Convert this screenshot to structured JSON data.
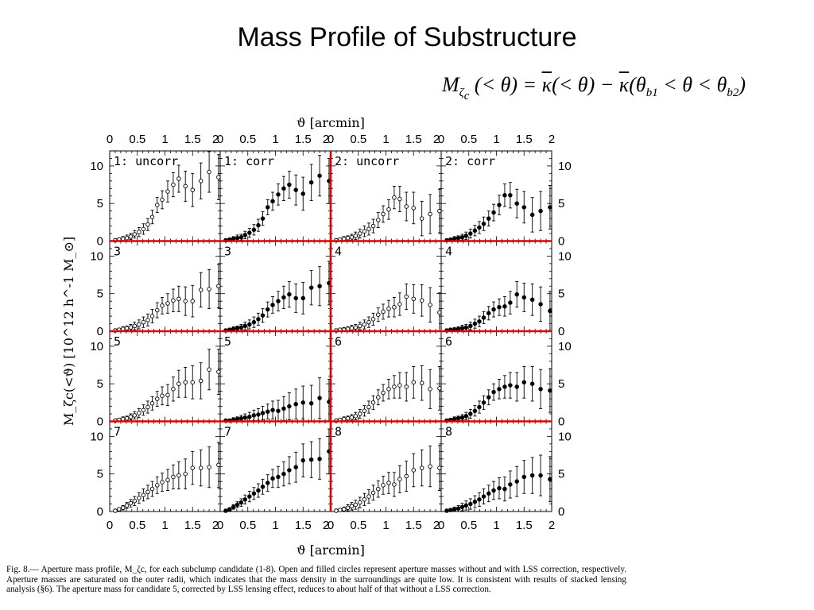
{
  "slide": {
    "title": "Mass Profile of Substructure",
    "equation": {
      "lhs": "M",
      "lhs_sub": "ζ",
      "lhs_sub_sub": "c",
      "part1": " (< θ) = ",
      "kappa": "κ",
      "part2": "(< θ) − ",
      "part3": "(θ",
      "sub1": "b1",
      "part4": " < θ < θ",
      "sub2": "b2",
      "part5": ")"
    },
    "caption": "Fig. 8.— Aperture mass profile, M_ζc, for each subclump candidate (1-8). Open and filled circles represent aperture masses without and with LSS correction, respectively. Aperture masses are saturated on the outer radii, which indicates that the mass density in the surroundings are quite low. It is consistent with results of stacked lensing analysis (§6). The aperture mass for candidate 5, corrected by LSS lensing effect, reduces to about half of that without a LSS correction."
  },
  "chart_data": {
    "type": "scatter",
    "xlabel": "ϑ [arcmin]",
    "ylabel": "M_ζc(<ϑ) [10^12 h^-1 M_⊙]",
    "xlim": [
      0,
      2
    ],
    "ylim": [
      0,
      12
    ],
    "x_ticks": [
      0,
      0.5,
      1,
      1.5,
      2
    ],
    "x_tick_labels": [
      "0",
      "0.5",
      "1",
      "1.5",
      "2"
    ],
    "y_ticks": [
      0,
      5,
      10
    ],
    "y_tick_labels": [
      "0",
      "5",
      "10"
    ],
    "grid": false,
    "rows": 4,
    "cols": 4,
    "x": [
      0.1,
      0.17,
      0.24,
      0.31,
      0.38,
      0.45,
      0.53,
      0.61,
      0.69,
      0.77,
      0.86,
      0.95,
      1.05,
      1.15,
      1.25,
      1.37,
      1.5,
      1.65,
      1.8,
      1.97
    ],
    "panels": [
      {
        "label": "1: uncorr",
        "marker": "open",
        "y": [
          0.1,
          0.2,
          0.3,
          0.4,
          0.6,
          0.9,
          1.2,
          1.6,
          2.2,
          3.2,
          4.8,
          5.5,
          6.6,
          7.5,
          8.3,
          7.3,
          6.8,
          8.0,
          9.2,
          8.5
        ],
        "err": [
          0.2,
          0.2,
          0.3,
          0.4,
          0.4,
          0.5,
          0.6,
          0.7,
          0.8,
          0.9,
          1.0,
          1.2,
          1.4,
          1.6,
          1.8,
          2.0,
          2.2,
          2.4,
          2.7,
          3.0
        ]
      },
      {
        "label": "1: corr",
        "marker": "filled",
        "y": [
          0.1,
          0.2,
          0.3,
          0.4,
          0.5,
          0.8,
          1.1,
          1.5,
          2.1,
          3.0,
          4.5,
          5.3,
          6.2,
          7.0,
          7.5,
          6.8,
          6.3,
          7.8,
          8.7,
          8.0
        ],
        "err": [
          0.2,
          0.2,
          0.3,
          0.4,
          0.4,
          0.5,
          0.6,
          0.7,
          0.8,
          0.9,
          1.0,
          1.2,
          1.4,
          1.6,
          1.8,
          2.0,
          2.2,
          2.4,
          2.7,
          3.0
        ]
      },
      {
        "label": "2: uncorr",
        "marker": "open",
        "y": [
          0.1,
          0.2,
          0.3,
          0.4,
          0.5,
          0.7,
          1.0,
          1.3,
          1.6,
          2.0,
          2.8,
          3.6,
          4.2,
          5.8,
          5.6,
          4.6,
          4.4,
          3.0,
          3.6,
          4.0
        ],
        "err": [
          0.2,
          0.2,
          0.3,
          0.3,
          0.4,
          0.5,
          0.6,
          0.7,
          0.8,
          0.9,
          1.0,
          1.1,
          1.3,
          1.5,
          1.7,
          1.9,
          2.1,
          2.3,
          2.6,
          2.9
        ]
      },
      {
        "label": "2: corr",
        "marker": "filled",
        "y": [
          0.1,
          0.2,
          0.3,
          0.4,
          0.5,
          0.7,
          1.0,
          1.4,
          1.8,
          2.3,
          3.0,
          3.8,
          4.8,
          6.1,
          6.1,
          5.0,
          4.5,
          3.5,
          4.0,
          4.5
        ],
        "err": [
          0.2,
          0.2,
          0.3,
          0.3,
          0.4,
          0.5,
          0.6,
          0.7,
          0.8,
          0.9,
          1.0,
          1.1,
          1.3,
          1.5,
          1.7,
          1.9,
          2.1,
          2.3,
          2.6,
          2.9
        ]
      },
      {
        "label": "3",
        "marker": "open",
        "y": [
          0.1,
          0.2,
          0.3,
          0.4,
          0.5,
          0.7,
          0.9,
          1.2,
          1.5,
          2.0,
          2.8,
          3.4,
          3.7,
          4.1,
          4.3,
          4.0,
          4.0,
          5.5,
          5.6,
          6.0
        ],
        "err": [
          0.2,
          0.2,
          0.3,
          0.3,
          0.4,
          0.5,
          0.6,
          0.7,
          0.8,
          0.9,
          1.0,
          1.1,
          1.3,
          1.5,
          1.7,
          1.9,
          2.1,
          2.3,
          2.6,
          2.9
        ]
      },
      {
        "label": "3",
        "marker": "filled",
        "y": [
          0.1,
          0.2,
          0.3,
          0.4,
          0.5,
          0.7,
          0.9,
          1.2,
          1.6,
          2.1,
          2.9,
          3.5,
          4.0,
          4.5,
          4.9,
          4.4,
          4.4,
          5.8,
          6.0,
          6.4
        ],
        "err": [
          0.2,
          0.2,
          0.3,
          0.3,
          0.4,
          0.5,
          0.6,
          0.7,
          0.8,
          0.9,
          1.0,
          1.1,
          1.3,
          1.5,
          1.7,
          1.9,
          2.1,
          2.3,
          2.6,
          2.9
        ]
      },
      {
        "label": "4",
        "marker": "open",
        "y": [
          0.1,
          0.2,
          0.2,
          0.3,
          0.4,
          0.5,
          0.7,
          0.9,
          1.2,
          1.6,
          2.2,
          2.6,
          3.0,
          3.2,
          3.6,
          4.6,
          4.3,
          4.1,
          3.5,
          2.5
        ],
        "err": [
          0.2,
          0.2,
          0.3,
          0.3,
          0.4,
          0.4,
          0.5,
          0.6,
          0.7,
          0.8,
          0.9,
          1.0,
          1.1,
          1.3,
          1.5,
          1.7,
          1.9,
          2.1,
          2.3,
          2.6
        ]
      },
      {
        "label": "4",
        "marker": "filled",
        "y": [
          0.1,
          0.2,
          0.2,
          0.3,
          0.4,
          0.5,
          0.7,
          1.0,
          1.3,
          1.8,
          2.4,
          2.9,
          3.2,
          3.3,
          3.8,
          4.9,
          4.5,
          4.2,
          3.6,
          2.7
        ],
        "err": [
          0.2,
          0.2,
          0.3,
          0.3,
          0.4,
          0.4,
          0.5,
          0.6,
          0.7,
          0.8,
          0.9,
          1.0,
          1.1,
          1.3,
          1.5,
          1.7,
          1.9,
          2.1,
          2.3,
          2.6
        ]
      },
      {
        "label": "5",
        "marker": "open",
        "y": [
          0.1,
          0.2,
          0.3,
          0.4,
          0.6,
          0.8,
          1.1,
          1.5,
          1.9,
          2.4,
          3.0,
          3.4,
          3.5,
          4.3,
          5.0,
          5.2,
          5.2,
          5.4,
          6.9,
          6.6
        ],
        "err": [
          0.2,
          0.2,
          0.3,
          0.3,
          0.4,
          0.5,
          0.6,
          0.7,
          0.8,
          0.9,
          1.0,
          1.2,
          1.4,
          1.6,
          1.8,
          2.0,
          2.2,
          2.4,
          2.7,
          3.0
        ]
      },
      {
        "label": "5",
        "marker": "filled",
        "y": [
          0.1,
          0.1,
          0.2,
          0.3,
          0.4,
          0.5,
          0.6,
          0.8,
          0.9,
          1.1,
          1.3,
          1.5,
          1.4,
          1.7,
          2.0,
          2.3,
          2.5,
          2.4,
          3.1,
          2.6
        ],
        "err": [
          0.2,
          0.2,
          0.3,
          0.3,
          0.4,
          0.5,
          0.6,
          0.7,
          0.8,
          0.9,
          1.0,
          1.2,
          1.4,
          1.6,
          1.8,
          2.0,
          2.2,
          2.4,
          2.7,
          3.0
        ]
      },
      {
        "label": "6",
        "marker": "open",
        "y": [
          0.1,
          0.2,
          0.3,
          0.4,
          0.5,
          0.7,
          1.0,
          1.4,
          1.9,
          2.5,
          3.2,
          3.8,
          4.3,
          4.6,
          4.8,
          4.6,
          5.2,
          5.1,
          4.3,
          4.4
        ],
        "err": [
          0.2,
          0.2,
          0.3,
          0.3,
          0.4,
          0.5,
          0.6,
          0.7,
          0.8,
          0.9,
          1.0,
          1.1,
          1.3,
          1.5,
          1.7,
          1.9,
          2.1,
          2.3,
          2.6,
          2.9
        ]
      },
      {
        "label": "6",
        "marker": "filled",
        "y": [
          0.1,
          0.2,
          0.3,
          0.4,
          0.5,
          0.7,
          1.0,
          1.4,
          1.9,
          2.5,
          3.2,
          3.9,
          4.3,
          4.6,
          4.8,
          4.6,
          5.2,
          5.0,
          4.3,
          4.1
        ],
        "err": [
          0.2,
          0.2,
          0.3,
          0.3,
          0.4,
          0.5,
          0.6,
          0.7,
          0.8,
          0.9,
          1.0,
          1.1,
          1.3,
          1.5,
          1.7,
          1.9,
          2.1,
          2.3,
          2.6,
          2.9
        ]
      },
      {
        "label": "7",
        "marker": "open",
        "y": [
          0.1,
          0.3,
          0.5,
          0.8,
          1.1,
          1.4,
          1.8,
          2.2,
          2.6,
          3.0,
          3.5,
          3.9,
          4.2,
          4.6,
          4.8,
          5.0,
          5.8,
          5.8,
          5.9,
          6.2
        ],
        "err": [
          0.2,
          0.2,
          0.3,
          0.4,
          0.5,
          0.6,
          0.7,
          0.8,
          0.9,
          1.0,
          1.1,
          1.2,
          1.4,
          1.6,
          1.8,
          2.0,
          2.2,
          2.4,
          2.7,
          3.0
        ]
      },
      {
        "label": "7",
        "marker": "filled",
        "y": [
          0.1,
          0.3,
          0.6,
          0.9,
          1.2,
          1.6,
          2.0,
          2.4,
          2.8,
          3.3,
          3.8,
          4.4,
          4.6,
          5.0,
          5.5,
          5.9,
          6.8,
          6.9,
          7.0,
          8.0
        ],
        "err": [
          0.2,
          0.2,
          0.3,
          0.4,
          0.5,
          0.6,
          0.7,
          0.8,
          0.9,
          1.0,
          1.1,
          1.2,
          1.4,
          1.6,
          1.8,
          2.0,
          2.2,
          2.4,
          2.7,
          3.0
        ]
      },
      {
        "label": "8",
        "marker": "open",
        "y": [
          0.1,
          0.2,
          0.3,
          0.5,
          0.7,
          0.9,
          1.2,
          1.6,
          2.0,
          2.5,
          3.0,
          3.5,
          3.8,
          3.6,
          4.3,
          4.7,
          5.5,
          5.8,
          6.0,
          5.8
        ],
        "err": [
          0.2,
          0.2,
          0.3,
          0.4,
          0.5,
          0.6,
          0.7,
          0.8,
          0.9,
          1.0,
          1.1,
          1.2,
          1.4,
          1.6,
          1.8,
          2.0,
          2.2,
          2.4,
          2.7,
          3.0
        ]
      },
      {
        "label": "8",
        "marker": "filled",
        "y": [
          0.1,
          0.2,
          0.3,
          0.4,
          0.6,
          0.8,
          1.0,
          1.3,
          1.6,
          2.0,
          2.4,
          2.8,
          3.1,
          3.0,
          3.6,
          4.0,
          4.6,
          4.8,
          4.8,
          4.3
        ],
        "err": [
          0.2,
          0.2,
          0.3,
          0.4,
          0.5,
          0.6,
          0.7,
          0.8,
          0.9,
          1.0,
          1.1,
          1.2,
          1.4,
          1.6,
          1.8,
          2.0,
          2.2,
          2.4,
          2.7,
          3.0
        ]
      }
    ]
  }
}
